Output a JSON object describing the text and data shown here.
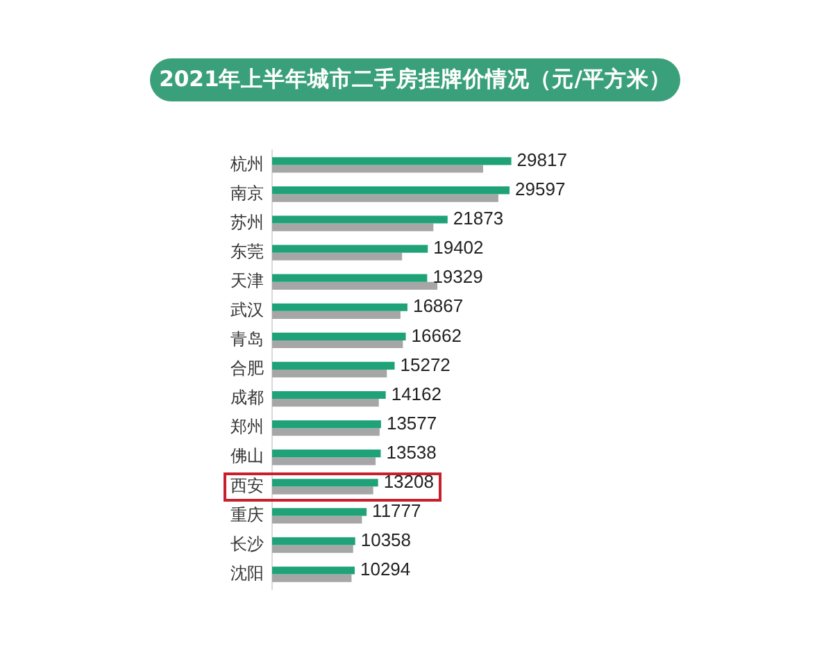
{
  "chart_data": {
    "type": "bar",
    "orientation": "horizontal",
    "title": "2021年上半年城市二手房挂牌价情况（元/平方米）",
    "categories": [
      "杭州",
      "南京",
      "苏州",
      "东莞",
      "天津",
      "武汉",
      "青岛",
      "合肥",
      "成都",
      "郑州",
      "佛山",
      "西安",
      "重庆",
      "长沙",
      "沈阳"
    ],
    "series": [
      {
        "color": "#1fa277",
        "values": [
          29817,
          29597,
          21873,
          19402,
          19329,
          16867,
          16662,
          15272,
          14162,
          13577,
          13538,
          13208,
          11777,
          10358,
          10294
        ],
        "value_labels": [
          "29817",
          "29597",
          "21873",
          "19402",
          "19329",
          "16867",
          "16662",
          "15272",
          "14162",
          "13577",
          "13538",
          "13208",
          "11777",
          "10358",
          "10294"
        ]
      },
      {
        "color": "#a6a6a6",
        "values": [
          26300,
          28200,
          20100,
          16200,
          20600,
          16000,
          16300,
          14300,
          13300,
          13400,
          12900,
          12600,
          11200,
          10100,
          9900
        ]
      }
    ],
    "tick_labels": "y"
  }
}
